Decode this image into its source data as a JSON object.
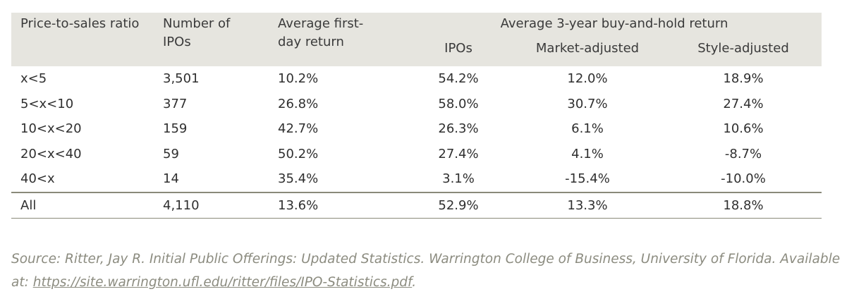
{
  "table": {
    "headers": {
      "ratio": "Price-to-sales ratio",
      "num_ipos": "Number of IPOs",
      "first_day": "Average first-day return",
      "group": "Average 3-year buy-and-hold return",
      "sub_ipos": "IPOs",
      "sub_market": "Market-adjusted",
      "sub_style": "Style-adjusted"
    },
    "rows": [
      {
        "ratio": "x<5",
        "num": "3,501",
        "first_day": "10.2%",
        "ipos": "54.2%",
        "market": "12.0%",
        "style": "18.9%"
      },
      {
        "ratio": "5<x<10",
        "num": "377",
        "first_day": "26.8%",
        "ipos": "58.0%",
        "market": "30.7%",
        "style": "27.4%"
      },
      {
        "ratio": "10<x<20",
        "num": "159",
        "first_day": "42.7%",
        "ipos": "26.3%",
        "market": "6.1%",
        "style": "10.6%"
      },
      {
        "ratio": "20<x<40",
        "num": "59",
        "first_day": "50.2%",
        "ipos": "27.4%",
        "market": "4.1%",
        "style": "-8.7%"
      },
      {
        "ratio": "40<x",
        "num": "14",
        "first_day": "35.4%",
        "ipos": "3.1%",
        "market": "-15.4%",
        "style": "-10.0%"
      }
    ],
    "total": {
      "ratio": "All",
      "num": "4,110",
      "first_day": "13.6%",
      "ipos": "52.9%",
      "market": "13.3%",
      "style": "18.8%"
    }
  },
  "source": {
    "text": "Source: Ritter, Jay R. Initial Public Offerings: Updated Statistics. Warrington College of Business, University of Florida. Available at: ",
    "link_text": "https://site.warrington.ufl.edu/ritter/files/IPO-Statistics.pdf",
    "trailing": "."
  },
  "colors": {
    "header_bg": "#e6e5df",
    "source_text": "#8c8c80",
    "rule": "#8a8a7a"
  }
}
